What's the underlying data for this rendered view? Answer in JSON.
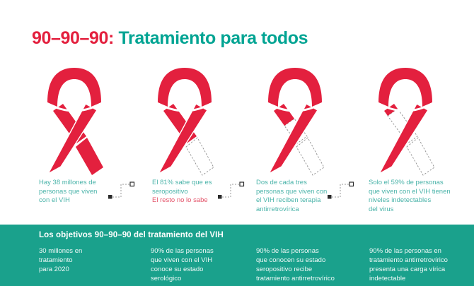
{
  "title": {
    "highlight": "90–90–90:",
    "rest": " Tratamiento para todos"
  },
  "colors": {
    "red": "#e3203e",
    "teal_title": "#00a493",
    "teal_caption": "#4ab3a9",
    "caption_red": "#e4556b",
    "footer_bg": "#1aa18c",
    "dash_grey": "#8f8f8f"
  },
  "ribbons": [
    {
      "icon": "aids-ribbon-icon",
      "variant": "full",
      "value_label": "38 millones de personas",
      "solid_percent": 100
    },
    {
      "icon": "aids-ribbon-icon",
      "variant": "tail-dashed",
      "value_label": "81%",
      "solid_percent": 81
    },
    {
      "icon": "aids-ribbon-icon",
      "variant": "leg-dashed",
      "value_label": "dos de cada tres",
      "solid_percent": 67
    },
    {
      "icon": "aids-ribbon-icon",
      "variant": "leg-mostly-dashed",
      "value_label": "59%",
      "solid_percent": 59
    }
  ],
  "captions": [
    {
      "text": "Hay 38 millones de\npersonas que viven\ncon el VIH",
      "alt": ""
    },
    {
      "text": "El 81% sabe que es\nseropositivo",
      "alt": "El resto no lo sabe"
    },
    {
      "text": "Dos de cada tres\npersonas que viven con\nel VIH reciben terapia\nantirretrovírica",
      "alt": ""
    },
    {
      "text": "Solo el 59% de personas\nque viven con el VIH tienen\nniveles indetectables\ndel virus",
      "alt": ""
    }
  ],
  "connector_icon": "dashed-step-connector-icon",
  "footer": {
    "heading": "Los objetivos 90–90–90 del tratamiento del VIH",
    "columns": [
      "30 millones en\ntratamiento\npara 2020",
      "90% de las personas\nque viven con el VIH\nconoce su estado\nserológico",
      "90% de las personas\nque conocen su estado\nseropositivo recibe\ntratamiento antirretrovírico",
      "90% de las personas en\ntratamiento antirretrovírico\npresenta una carga vírica\nindetectable"
    ]
  }
}
